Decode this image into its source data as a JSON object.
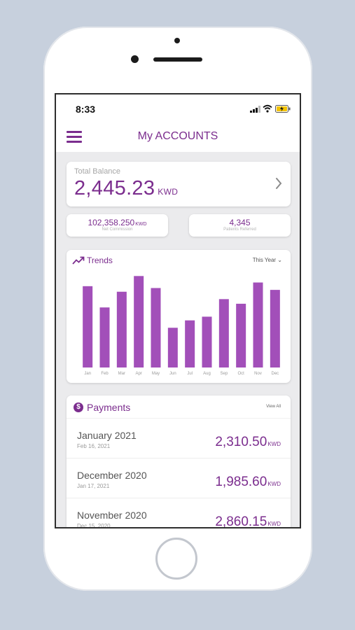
{
  "status_bar": {
    "time": "8:33"
  },
  "header": {
    "title": "My ACCOUNTS"
  },
  "balance": {
    "label": "Total Balance",
    "value": "2,445.23",
    "unit": "KWD"
  },
  "stats": [
    {
      "value": "102,358.250",
      "unit": "KWD",
      "label": "Net Commission"
    },
    {
      "value": "4,345",
      "unit": "",
      "label": "Patients Referred"
    }
  ],
  "trends": {
    "title": "Trends",
    "period": "This Year"
  },
  "chart_data": {
    "type": "bar",
    "categories": [
      "Jan",
      "Feb",
      "Mar",
      "Apr",
      "May",
      "Jun",
      "Jul",
      "Aug",
      "Sep",
      "Oct",
      "Nov",
      "Dec"
    ],
    "values": [
      88,
      65,
      82,
      99,
      86,
      43,
      51,
      55,
      74,
      69,
      92,
      84
    ],
    "ylim": [
      0,
      100
    ],
    "grid": false,
    "legend": "none",
    "color": "#a24fb9"
  },
  "payments": {
    "title": "Payments",
    "view_all": "View All",
    "items": [
      {
        "month": "January 2021",
        "date": "Feb 16, 2021",
        "amount": "2,310.50",
        "unit": "KWD"
      },
      {
        "month": "December 2020",
        "date": "Jan 17, 2021",
        "amount": "1,985.60",
        "unit": "KWD"
      },
      {
        "month": "November 2020",
        "date": "Dec 15, 2020",
        "amount": "2,860.15",
        "unit": "KWD"
      }
    ]
  },
  "colors": {
    "accent": "#7b2d8e",
    "bar": "#a24fb9",
    "background": "#c7d0dd"
  },
  "icons": {
    "menu": "hamburger-icon",
    "chevron": "chevron-right-icon",
    "trend": "trending-up-icon",
    "payment": "dollar-circle-icon"
  }
}
